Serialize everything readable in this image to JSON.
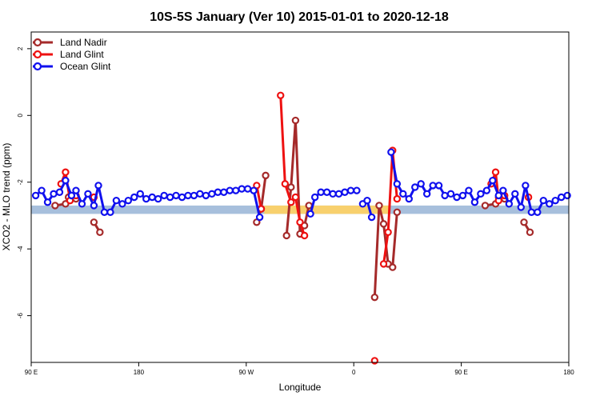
{
  "chart_data": {
    "type": "line",
    "title": "10S-5S January (Ver 10)   2015-01-01 to 2020-12-18",
    "xlabel": "Longitude",
    "ylabel": "XCO2 - MLO trend (ppm)",
    "xlim": [
      0,
      360
    ],
    "ylim": [
      -7.4,
      2.5
    ],
    "x_ticks": [
      {
        "value": 0,
        "label": "90 E"
      },
      {
        "value": 72,
        "label": "180"
      },
      {
        "value": 144,
        "label": "90 W"
      },
      {
        "value": 216,
        "label": "0"
      },
      {
        "value": 288,
        "label": "90 E"
      },
      {
        "value": 360,
        "label": "180"
      }
    ],
    "y_ticks": [
      {
        "value": 2,
        "label": "2"
      },
      {
        "value": 0,
        "label": "0"
      },
      {
        "value": -2,
        "label": "-2"
      },
      {
        "value": -4,
        "label": "-4"
      },
      {
        "value": -6,
        "label": "-6"
      }
    ],
    "bands": [
      {
        "name": "reference-band",
        "y_range": [
          -2.95,
          -2.7
        ],
        "color": "#a7bfdc"
      },
      {
        "name": "land-highlight-band",
        "x_range": [
          156,
          240
        ],
        "y_range": [
          -2.95,
          -2.7
        ],
        "color": "#f8d06d"
      }
    ],
    "legend_position": "top-left",
    "series": [
      {
        "name": "Land Nadir",
        "color": "#a52a2a",
        "segments": [
          [
            [
              16,
              -2.7
            ],
            [
              23,
              -2.65
            ],
            [
              25,
              -2.45
            ],
            [
              30,
              -2.5
            ]
          ],
          [
            [
              42,
              -3.2
            ],
            [
              46,
              -3.5
            ]
          ],
          [
            [
              151,
              -3.2
            ],
            [
              154,
              -2.8
            ],
            [
              157,
              -1.8
            ]
          ],
          [
            [
              171,
              -3.6
            ],
            [
              174,
              -2.15
            ],
            [
              177,
              -0.15
            ],
            [
              180,
              -3.55
            ],
            [
              183,
              -3.3
            ],
            [
              186,
              -2.7
            ]
          ],
          [
            [
              230,
              -5.45
            ],
            [
              233,
              -2.7
            ],
            [
              236,
              -3.25
            ],
            [
              239,
              -4.45
            ],
            [
              242,
              -4.55
            ],
            [
              245,
              -2.9
            ]
          ],
          [
            [
              304,
              -2.7
            ],
            [
              311,
              -2.65
            ],
            [
              313,
              -2.45
            ],
            [
              317,
              -2.5
            ]
          ],
          [
            [
              330,
              -3.2
            ],
            [
              334,
              -3.5
            ]
          ]
        ]
      },
      {
        "name": "Land Glint",
        "color": "#ee1111",
        "segments": [
          [
            [
              20,
              -2.05
            ],
            [
              23,
              -1.7
            ],
            [
              26,
              -2.55
            ],
            [
              30,
              -2.4
            ]
          ],
          [
            [
              42,
              -2.45
            ]
          ],
          [
            [
              151,
              -2.1
            ],
            [
              154,
              -2.8
            ]
          ],
          [
            [
              167,
              0.6
            ],
            [
              170,
              -2.05
            ],
            [
              174,
              -2.6
            ],
            [
              177,
              -2.45
            ],
            [
              180,
              -3.2
            ],
            [
              183,
              -3.6
            ]
          ],
          [
            [
              230,
              -7.35
            ]
          ],
          [
            [
              236,
              -4.45
            ],
            [
              239,
              -3.5
            ],
            [
              242,
              -1.05
            ],
            [
              245,
              -2.5
            ]
          ],
          [
            [
              308,
              -2.05
            ],
            [
              311,
              -1.7
            ],
            [
              313,
              -2.55
            ],
            [
              317,
              -2.4
            ]
          ],
          [
            [
              333,
              -2.45
            ]
          ]
        ]
      },
      {
        "name": "Ocean Glint",
        "color": "#1010ee",
        "segments": [
          [
            [
              3,
              -2.4
            ],
            [
              7,
              -2.25
            ],
            [
              11,
              -2.6
            ],
            [
              15,
              -2.35
            ],
            [
              19,
              -2.3
            ],
            [
              23,
              -1.95
            ],
            [
              27,
              -2.4
            ],
            [
              30,
              -2.25
            ],
            [
              34,
              -2.65
            ],
            [
              38,
              -2.35
            ],
            [
              42,
              -2.7
            ],
            [
              45,
              -2.1
            ],
            [
              49,
              -2.9
            ],
            [
              53,
              -2.9
            ],
            [
              57,
              -2.55
            ],
            [
              61,
              -2.65
            ],
            [
              65,
              -2.55
            ],
            [
              69,
              -2.45
            ],
            [
              73,
              -2.35
            ],
            [
              77,
              -2.5
            ],
            [
              81,
              -2.45
            ],
            [
              85,
              -2.5
            ],
            [
              89,
              -2.4
            ],
            [
              93,
              -2.45
            ],
            [
              97,
              -2.4
            ],
            [
              101,
              -2.45
            ],
            [
              105,
              -2.4
            ],
            [
              109,
              -2.4
            ],
            [
              113,
              -2.35
            ],
            [
              117,
              -2.4
            ],
            [
              121,
              -2.35
            ],
            [
              125,
              -2.3
            ],
            [
              129,
              -2.3
            ],
            [
              133,
              -2.25
            ],
            [
              137,
              -2.25
            ],
            [
              141,
              -2.2
            ],
            [
              145,
              -2.2
            ],
            [
              149,
              -2.25
            ],
            [
              153,
              -3.05
            ]
          ],
          [
            [
              187,
              -2.95
            ],
            [
              190,
              -2.45
            ],
            [
              194,
              -2.3
            ],
            [
              198,
              -2.3
            ],
            [
              202,
              -2.35
            ],
            [
              206,
              -2.35
            ],
            [
              210,
              -2.3
            ],
            [
              214,
              -2.25
            ],
            [
              218,
              -2.25
            ]
          ],
          [
            [
              222,
              -2.65
            ],
            [
              225,
              -2.55
            ],
            [
              228,
              -3.05
            ]
          ],
          [
            [
              241,
              -1.1
            ],
            [
              245,
              -2.05
            ],
            [
              249,
              -2.35
            ],
            [
              253,
              -2.5
            ],
            [
              257,
              -2.15
            ],
            [
              261,
              -2.05
            ],
            [
              265,
              -2.35
            ],
            [
              269,
              -2.1
            ],
            [
              273,
              -2.1
            ],
            [
              277,
              -2.4
            ],
            [
              281,
              -2.35
            ],
            [
              285,
              -2.45
            ],
            [
              289,
              -2.4
            ],
            [
              293,
              -2.25
            ],
            [
              297,
              -2.6
            ],
            [
              301,
              -2.35
            ],
            [
              305,
              -2.25
            ],
            [
              309,
              -1.95
            ],
            [
              313,
              -2.4
            ],
            [
              316,
              -2.25
            ],
            [
              320,
              -2.65
            ],
            [
              324,
              -2.35
            ],
            [
              328,
              -2.75
            ],
            [
              331,
              -2.1
            ],
            [
              335,
              -2.9
            ],
            [
              339,
              -2.9
            ],
            [
              343,
              -2.55
            ],
            [
              347,
              -2.65
            ],
            [
              351,
              -2.55
            ],
            [
              355,
              -2.45
            ],
            [
              359,
              -2.4
            ]
          ]
        ]
      }
    ]
  }
}
